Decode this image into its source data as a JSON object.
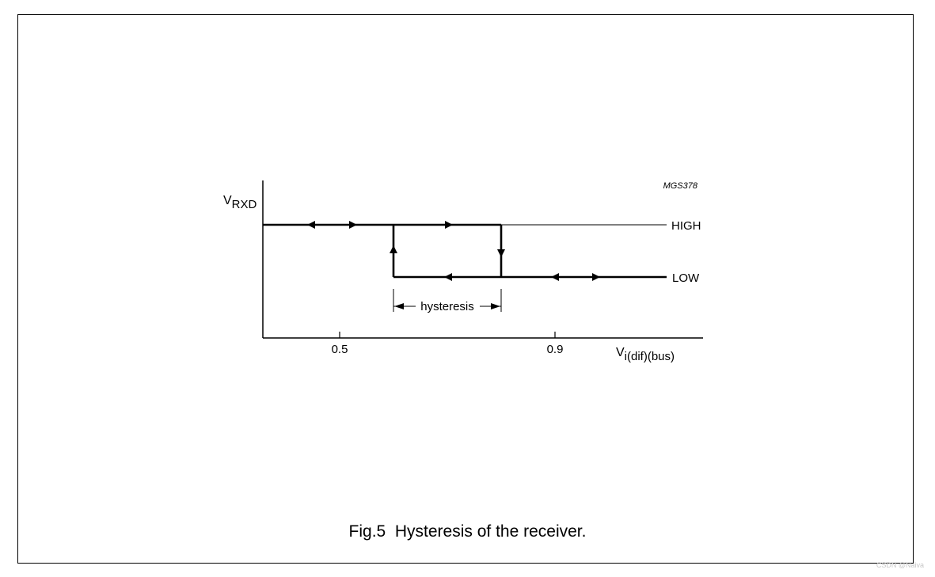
{
  "figure": {
    "code": "MGS378",
    "caption_label": "Fig.5",
    "caption_text": "Hysteresis of the receiver."
  },
  "axes": {
    "y_label_main": "V",
    "y_label_sub": "RXD",
    "x_label_main": "V",
    "x_label_sub": "i(dif)(bus)",
    "x_ticks": [
      "0.5",
      "0.9"
    ]
  },
  "levels": {
    "high": "HIGH",
    "low": "LOW"
  },
  "annotation": {
    "hysteresis": "hysteresis"
  },
  "watermark": "CSDN @Naiva"
}
